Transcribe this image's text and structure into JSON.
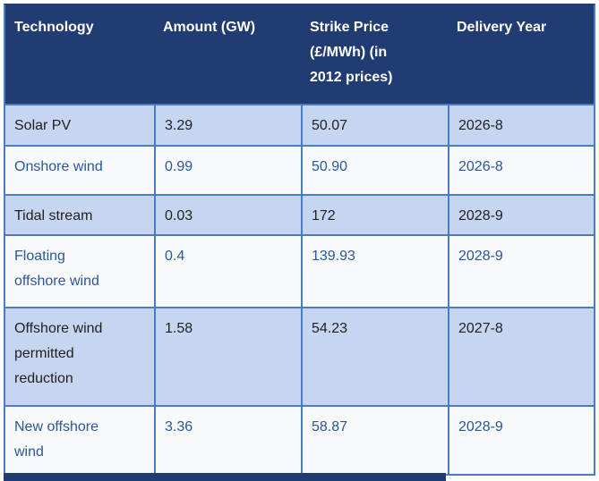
{
  "colors": {
    "header_bg": "#213C72",
    "header_text": "#FFFFFF",
    "row_alt_bg": "#C7D6F0",
    "row_plain_bg": "#F8F9FB",
    "grid_border": "#4A7CC2",
    "row_alt_text": "#1F1F1F",
    "row_plain_text": "#2B579A"
  },
  "table": {
    "columns": [
      {
        "label": "Technology"
      },
      {
        "label": "Amount (GW)"
      },
      {
        "label": "Strike Price (£/MWh) (in 2012 prices)"
      },
      {
        "label": "Delivery Year"
      }
    ],
    "rows": [
      {
        "technology": "Solar PV",
        "amount": "3.29",
        "strike_price": "50.07",
        "delivery_year": "2026-8"
      },
      {
        "technology": "Onshore wind",
        "amount": "0.99",
        "strike_price": "50.90",
        "delivery_year": "2026-8"
      },
      {
        "technology": "Tidal stream",
        "amount": "0.03",
        "strike_price": "172",
        "delivery_year": "2028-9"
      },
      {
        "technology": "Floating offshore wind",
        "amount": "0.4",
        "strike_price": "139.93",
        "delivery_year": "2028-9"
      },
      {
        "technology": "Offshore wind permitted reduction",
        "amount": "1.58",
        "strike_price": "54.23",
        "delivery_year": "2027-8"
      },
      {
        "technology": "New offshore wind",
        "amount": "3.36",
        "strike_price": "58.87",
        "delivery_year": "2028-9"
      }
    ]
  },
  "chart_data": {
    "type": "table",
    "title": "",
    "columns": [
      "Technology",
      "Amount (GW)",
      "Strike Price (£/MWh) (in 2012 prices)",
      "Delivery Year"
    ],
    "rows": [
      [
        "Solar PV",
        "3.29",
        "50.07",
        "2026-8"
      ],
      [
        "Onshore wind",
        "0.99",
        "50.90",
        "2026-8"
      ],
      [
        "Tidal stream",
        "0.03",
        "172",
        "2028-9"
      ],
      [
        "Floating offshore wind",
        "0.4",
        "139.93",
        "2028-9"
      ],
      [
        "Offshore wind permitted reduction",
        "1.58",
        "54.23",
        "2027-8"
      ],
      [
        "New offshore wind",
        "3.36",
        "58.87",
        "2028-9"
      ]
    ]
  }
}
